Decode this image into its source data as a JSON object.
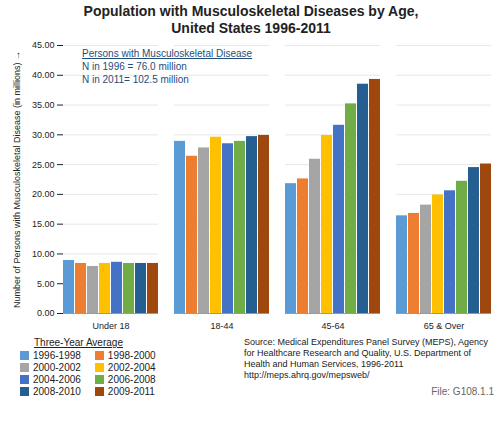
{
  "chart_data": {
    "type": "bar",
    "title": "Population with Musculoskeletal Diseases by Age, United States 1996-2011",
    "ylabel": "Number of Persons with Musculoskeletal Disease (in millions)",
    "annotations": [
      "Persons with Musculoskeletal Disease",
      "N in 1996 = 76.0 million",
      "N in 2011= 102.5 million"
    ],
    "legend_title": "Three-Year Average",
    "source": "Source: Medical Expenditures Panel Survey (MEPS), Agency for Healthcare Research and Quality, U.S. Department of Health and Human Services, 1996-2011 http://meps.ahrq.gov/mepsweb/",
    "footer": "File: G108.1.1",
    "categories": [
      "Under 18",
      "18-44",
      "45-64",
      "65 & Over"
    ],
    "series": [
      {
        "name": "1996-1998",
        "color": "#5b9bd5",
        "values": [
          8.9,
          28.9,
          21.8,
          16.4
        ]
      },
      {
        "name": "1998-2000",
        "color": "#ed7d31",
        "values": [
          8.4,
          26.4,
          22.6,
          16.8
        ]
      },
      {
        "name": "2000-2002",
        "color": "#a5a5a5",
        "values": [
          7.9,
          27.8,
          25.9,
          18.2
        ]
      },
      {
        "name": "2002-2004",
        "color": "#ffc000",
        "values": [
          8.4,
          29.6,
          29.9,
          19.9
        ]
      },
      {
        "name": "2004-2006",
        "color": "#4472c4",
        "values": [
          8.6,
          28.5,
          31.6,
          20.6
        ]
      },
      {
        "name": "2006-2008",
        "color": "#70ad47",
        "values": [
          8.4,
          28.9,
          35.2,
          22.2
        ]
      },
      {
        "name": "2008-2010",
        "color": "#255e91",
        "values": [
          8.4,
          29.7,
          38.5,
          24.5
        ]
      },
      {
        "name": "2009-2011",
        "color": "#9e480e",
        "values": [
          8.4,
          29.9,
          39.3,
          25.1
        ]
      }
    ],
    "ylim": [
      0,
      45
    ],
    "yticks": [
      {
        "value": 0,
        "label": "0.00"
      },
      {
        "value": 5,
        "label": "5.00"
      },
      {
        "value": 10,
        "label": "10.00"
      },
      {
        "value": 15,
        "label": "15.00"
      },
      {
        "value": 20,
        "label": "20.00"
      },
      {
        "value": 25,
        "label": "25.00"
      },
      {
        "value": 30,
        "label": "30.00"
      },
      {
        "value": 35,
        "label": "35.00"
      },
      {
        "value": 40,
        "label": "40.00"
      },
      {
        "value": 45,
        "label": "45.00"
      }
    ],
    "grid": true,
    "legend": "bottom-left"
  }
}
